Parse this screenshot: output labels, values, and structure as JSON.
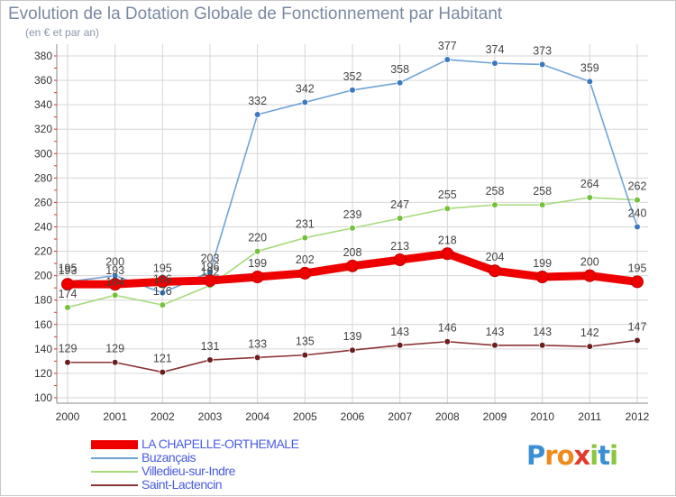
{
  "title": "Evolution de la Dotation Globale de Fonctionnement par Habitant",
  "subtitle": "(en € et par an)",
  "logo": {
    "text": "Proxiti",
    "letters": [
      {
        "ch": "P",
        "color": "#3a8fd6"
      },
      {
        "ch": "r",
        "color": "#f08a1c"
      },
      {
        "ch": "o",
        "color": "#f08a1c"
      },
      {
        "ch": "x",
        "color": "#e23a2c"
      },
      {
        "ch": "i",
        "color": "#8cc63f"
      },
      {
        "ch": "t",
        "color": "#3a8fd6"
      },
      {
        "ch": "i",
        "color": "#8cc63f"
      }
    ]
  },
  "chart_data": {
    "type": "line",
    "x": [
      "2000",
      "2001",
      "2002",
      "2003",
      "2004",
      "2005",
      "2006",
      "2007",
      "2008",
      "2009",
      "2010",
      "2011",
      "2012"
    ],
    "ylim": [
      100,
      380
    ],
    "yticks": [
      100,
      120,
      140,
      160,
      180,
      200,
      220,
      240,
      260,
      280,
      300,
      320,
      340,
      360,
      380
    ],
    "grid": true,
    "legend": "bottom-left",
    "series": [
      {
        "name": "LA CHAPELLE-ORTHEMALE",
        "color": "#ee0000",
        "label_color": "#4a5ce0",
        "thick": true,
        "values": [
          193,
          193,
          195,
          196,
          199,
          202,
          208,
          213,
          218,
          204,
          199,
          200,
          195
        ]
      },
      {
        "name": "Buzançais",
        "color": "#6fa3d6",
        "label_color": "#4a5ce0",
        "point": "#3a78c0",
        "values": [
          195,
          200,
          186,
          203,
          332,
          342,
          352,
          358,
          377,
          374,
          373,
          359,
          240
        ]
      },
      {
        "name": "Villedieu-sur-Indre",
        "color": "#a6db7d",
        "label_color": "#4a5ce0",
        "point": "#74c23b",
        "values": [
          174,
          184,
          176,
          192,
          220,
          231,
          239,
          247,
          255,
          258,
          258,
          264,
          262
        ]
      },
      {
        "name": "Saint-Lactencin",
        "color": "#8a3434",
        "label_color": "#4a5ce0",
        "point": "#6b1e1e",
        "values": [
          129,
          129,
          121,
          131,
          133,
          135,
          139,
          143,
          146,
          143,
          143,
          142,
          147
        ]
      }
    ]
  }
}
